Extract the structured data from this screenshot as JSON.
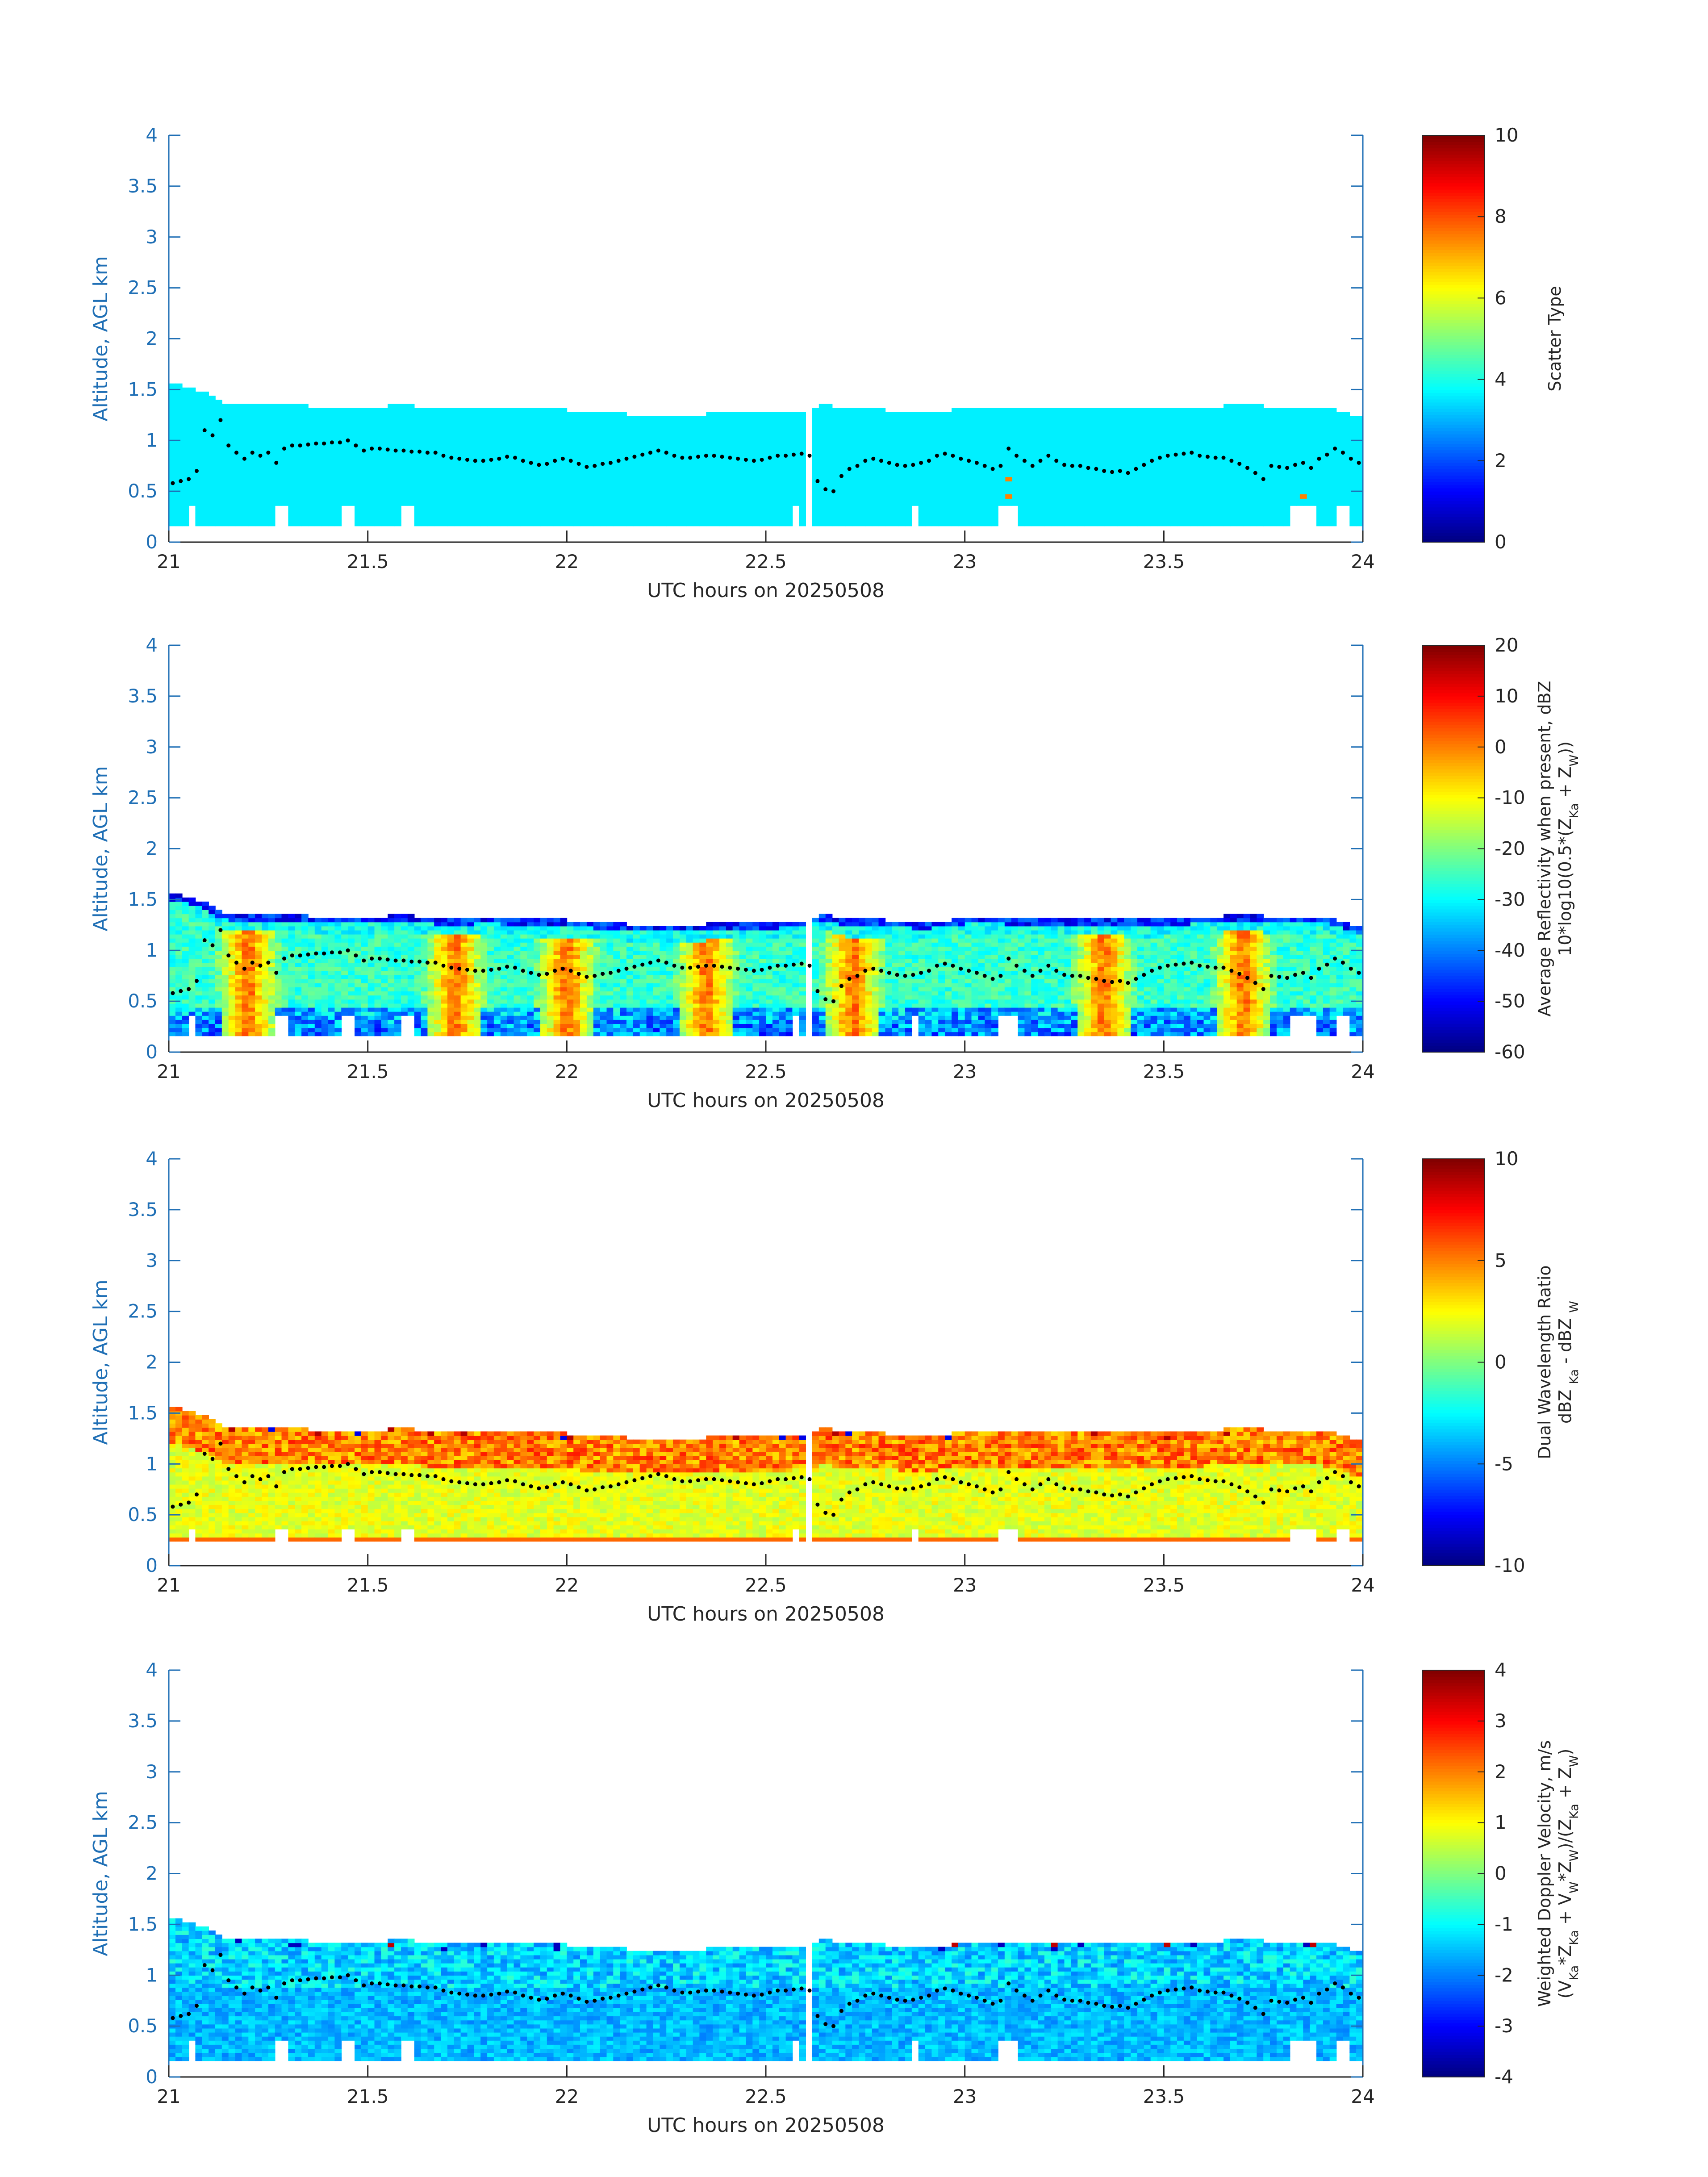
{
  "figure": {
    "colors": {
      "axis": "#1f6fb5",
      "text": "#262626",
      "height_line": "#000000",
      "background": "#ffffff"
    },
    "colormap": "jet"
  },
  "chart_data": [
    {
      "type": "heatmap",
      "title": "",
      "xlabel": "UTC hours on 20250508",
      "ylabel": "Altitude, AGL km",
      "xlim": [
        21,
        24
      ],
      "ylim": [
        0,
        4
      ],
      "x_ticks": [
        "21",
        "21.5",
        "22",
        "22.5",
        "23",
        "23.5",
        "24"
      ],
      "y_ticks": [
        "0",
        "0.5",
        "1",
        "1.5",
        "2",
        "2.5",
        "3",
        "3.5",
        "4"
      ],
      "colorbar": {
        "lines": [
          "Scatter Type"
        ],
        "range": [
          0,
          10
        ],
        "ticks": [
          "0",
          "2",
          "4",
          "6",
          "8",
          "10"
        ]
      },
      "field": "scatter_type",
      "echo_base_km": 0.18,
      "dominant_value": 3.6,
      "sparse_values": [
        {
          "x": 23.11,
          "y": 0.45,
          "v": 7.5
        },
        {
          "x": 23.11,
          "y": 0.62,
          "v": 7.5
        },
        {
          "x": 23.85,
          "y": 0.45,
          "v": 7.5
        }
      ]
    },
    {
      "type": "heatmap",
      "title": "",
      "xlabel": "UTC hours on 20250508",
      "ylabel": "Altitude, AGL km",
      "xlim": [
        21,
        24
      ],
      "ylim": [
        0,
        4
      ],
      "x_ticks": [
        "21",
        "21.5",
        "22",
        "22.5",
        "23",
        "23.5",
        "24"
      ],
      "y_ticks": [
        "0",
        "0.5",
        "1",
        "1.5",
        "2",
        "2.5",
        "3",
        "3.5",
        "4"
      ],
      "colorbar": {
        "lines": [
          "Average Reflectivity when present, dBZ",
          "10*log10(0.5*(Z<sub>Ka</sub> + Z<sub>W</sub>))"
        ],
        "range": [
          -60,
          20
        ],
        "ticks": [
          "-60",
          "-50",
          "-40",
          "-30",
          "-20",
          "-10",
          "0",
          "10",
          "20"
        ]
      },
      "field": "reflectivity_dbz",
      "echo_base_km": 0.18,
      "core_value_range": [
        -12,
        2
      ],
      "edge_value_range": [
        -55,
        -40
      ],
      "strong_columns_hr": [
        21.2,
        21.72,
        22.0,
        22.35,
        22.72,
        23.35,
        23.7
      ]
    },
    {
      "type": "heatmap",
      "title": "",
      "xlabel": "UTC hours on 20250508",
      "ylabel": "Altitude, AGL km",
      "xlim": [
        21,
        24
      ],
      "ylim": [
        0,
        4
      ],
      "x_ticks": [
        "21",
        "21.5",
        "22",
        "22.5",
        "23",
        "23.5",
        "24"
      ],
      "y_ticks": [
        "0",
        "0.5",
        "1",
        "1.5",
        "2",
        "2.5",
        "3",
        "3.5",
        "4"
      ],
      "colorbar": {
        "lines": [
          "Dual Wavelength Ratio",
          "dBZ <sub>Ka</sub> - dBZ <sub>W</sub>"
        ],
        "range": [
          -10,
          10
        ],
        "ticks": [
          "-10",
          "-5",
          "0",
          "5",
          "10"
        ]
      },
      "field": "dual_wavelength_ratio_db",
      "echo_base_km": 0.25,
      "lower_value_range": [
        1,
        3
      ],
      "upper_value_range": [
        3,
        7
      ],
      "bottom_row_value": 5.5
    },
    {
      "type": "heatmap",
      "title": "",
      "xlabel": "UTC hours on 20250508",
      "ylabel": "Altitude, AGL km",
      "xlim": [
        21,
        24
      ],
      "ylim": [
        0,
        4
      ],
      "x_ticks": [
        "21",
        "21.5",
        "22",
        "22.5",
        "23",
        "23.5",
        "24"
      ],
      "y_ticks": [
        "0",
        "0.5",
        "1",
        "1.5",
        "2",
        "2.5",
        "3",
        "3.5",
        "4"
      ],
      "colorbar": {
        "lines": [
          "Weighted Doppler Velocity, m/s",
          "(V<sub>Ka</sub>*Z<sub>Ka</sub> + V<sub>W</sub>*Z<sub>W</sub>)/(Z<sub>Ka</sub> + Z<sub>W</sub>)"
        ],
        "range": [
          -4,
          4
        ],
        "ticks": [
          "-4",
          "-3",
          "-2",
          "-1",
          "0",
          "1",
          "2",
          "3",
          "4"
        ]
      },
      "field": "doppler_velocity_ms",
      "echo_base_km": 0.18,
      "value_range": [
        -3,
        0.5
      ],
      "typical_value": -1.3
    }
  ],
  "shared": {
    "cloud_top_km": [
      [
        21.0,
        1.55
      ],
      [
        21.02,
        1.55
      ],
      [
        21.05,
        1.52
      ],
      [
        21.1,
        1.45
      ],
      [
        21.15,
        1.35
      ],
      [
        21.2,
        1.35
      ],
      [
        21.3,
        1.35
      ],
      [
        21.4,
        1.33
      ],
      [
        21.5,
        1.33
      ],
      [
        21.6,
        1.35
      ],
      [
        21.7,
        1.3
      ],
      [
        21.8,
        1.33
      ],
      [
        21.9,
        1.3
      ],
      [
        22.0,
        1.3
      ],
      [
        22.1,
        1.27
      ],
      [
        22.2,
        1.25
      ],
      [
        22.3,
        1.25
      ],
      [
        22.4,
        1.27
      ],
      [
        22.5,
        1.27
      ],
      [
        22.6,
        1.3
      ],
      [
        22.65,
        1.35
      ],
      [
        22.7,
        1.3
      ],
      [
        22.8,
        1.3
      ],
      [
        22.9,
        1.27
      ],
      [
        23.0,
        1.32
      ],
      [
        23.1,
        1.32
      ],
      [
        23.2,
        1.3
      ],
      [
        23.3,
        1.32
      ],
      [
        23.4,
        1.3
      ],
      [
        23.5,
        1.3
      ],
      [
        23.6,
        1.33
      ],
      [
        23.7,
        1.35
      ],
      [
        23.8,
        1.33
      ],
      [
        23.9,
        1.33
      ],
      [
        23.95,
        1.28
      ],
      [
        24.0,
        1.22
      ]
    ],
    "base_gaps_hr": [
      [
        21.05,
        21.07
      ],
      [
        21.26,
        21.3
      ],
      [
        21.44,
        21.46
      ],
      [
        21.58,
        21.62
      ],
      [
        22.56,
        22.58
      ],
      [
        22.86,
        22.88
      ],
      [
        23.08,
        23.14
      ],
      [
        23.82,
        23.88
      ],
      [
        23.93,
        23.97
      ]
    ],
    "sample_gaps_hr": [
      [
        22.6,
        22.61
      ],
      [
        23.13,
        23.14
      ]
    ],
    "height_series": {
      "x": [
        21.01,
        21.03,
        21.05,
        21.07,
        21.09,
        21.11,
        21.13,
        21.15,
        21.17,
        21.19,
        21.21,
        21.23,
        21.25,
        21.27,
        21.29,
        21.31,
        21.33,
        21.35,
        21.37,
        21.39,
        21.41,
        21.43,
        21.45,
        21.47,
        21.49,
        21.51,
        21.53,
        21.55,
        21.57,
        21.59,
        21.61,
        21.63,
        21.65,
        21.67,
        21.69,
        21.71,
        21.73,
        21.75,
        21.77,
        21.79,
        21.81,
        21.83,
        21.85,
        21.87,
        21.89,
        21.91,
        21.93,
        21.95,
        21.97,
        21.99,
        22.01,
        22.03,
        22.05,
        22.07,
        22.09,
        22.11,
        22.13,
        22.15,
        22.17,
        22.19,
        22.21,
        22.23,
        22.25,
        22.27,
        22.29,
        22.31,
        22.33,
        22.35,
        22.37,
        22.39,
        22.41,
        22.43,
        22.45,
        22.47,
        22.49,
        22.51,
        22.53,
        22.55,
        22.57,
        22.59,
        22.61,
        22.63,
        22.65,
        22.67,
        22.69,
        22.71,
        22.73,
        22.75,
        22.77,
        22.79,
        22.81,
        22.83,
        22.85,
        22.87,
        22.89,
        22.91,
        22.93,
        22.95,
        22.97,
        22.99,
        23.01,
        23.03,
        23.05,
        23.07,
        23.09,
        23.11,
        23.13,
        23.15,
        23.17,
        23.19,
        23.21,
        23.23,
        23.25,
        23.27,
        23.29,
        23.31,
        23.33,
        23.35,
        23.37,
        23.39,
        23.41,
        23.43,
        23.45,
        23.47,
        23.49,
        23.51,
        23.53,
        23.55,
        23.57,
        23.59,
        23.61,
        23.63,
        23.65,
        23.67,
        23.69,
        23.71,
        23.73,
        23.75,
        23.77,
        23.79,
        23.81,
        23.83,
        23.85,
        23.87,
        23.89,
        23.91,
        23.93,
        23.95,
        23.97,
        23.99
      ],
      "y": [
        0.58,
        0.6,
        0.62,
        0.7,
        1.1,
        1.05,
        1.2,
        0.95,
        0.88,
        0.82,
        0.88,
        0.85,
        0.88,
        0.78,
        0.92,
        0.95,
        0.95,
        0.96,
        0.97,
        0.97,
        0.98,
        0.98,
        1.0,
        0.95,
        0.9,
        0.92,
        0.92,
        0.91,
        0.9,
        0.9,
        0.89,
        0.89,
        0.88,
        0.88,
        0.85,
        0.83,
        0.82,
        0.81,
        0.8,
        0.8,
        0.81,
        0.82,
        0.84,
        0.83,
        0.8,
        0.78,
        0.76,
        0.77,
        0.8,
        0.82,
        0.8,
        0.77,
        0.74,
        0.75,
        0.77,
        0.78,
        0.8,
        0.82,
        0.84,
        0.86,
        0.88,
        0.9,
        0.88,
        0.85,
        0.83,
        0.83,
        0.84,
        0.85,
        0.85,
        0.84,
        0.83,
        0.82,
        0.81,
        0.8,
        0.81,
        0.83,
        0.85,
        0.85,
        0.86,
        0.87,
        0.85,
        0.6,
        0.52,
        0.5,
        0.65,
        0.72,
        0.75,
        0.8,
        0.82,
        0.8,
        0.78,
        0.76,
        0.75,
        0.76,
        0.78,
        0.8,
        0.85,
        0.87,
        0.85,
        0.82,
        0.8,
        0.78,
        0.75,
        0.72,
        0.75,
        0.92,
        0.85,
        0.8,
        0.75,
        0.8,
        0.85,
        0.8,
        0.76,
        0.75,
        0.75,
        0.73,
        0.72,
        0.7,
        0.69,
        0.7,
        0.68,
        0.72,
        0.76,
        0.8,
        0.83,
        0.85,
        0.86,
        0.87,
        0.88,
        0.85,
        0.84,
        0.83,
        0.83,
        0.8,
        0.77,
        0.73,
        0.68,
        0.62,
        0.75,
        0.74,
        0.73,
        0.76,
        0.78,
        0.73,
        0.82,
        0.86,
        0.92,
        0.88,
        0.82,
        0.78
      ]
    }
  }
}
